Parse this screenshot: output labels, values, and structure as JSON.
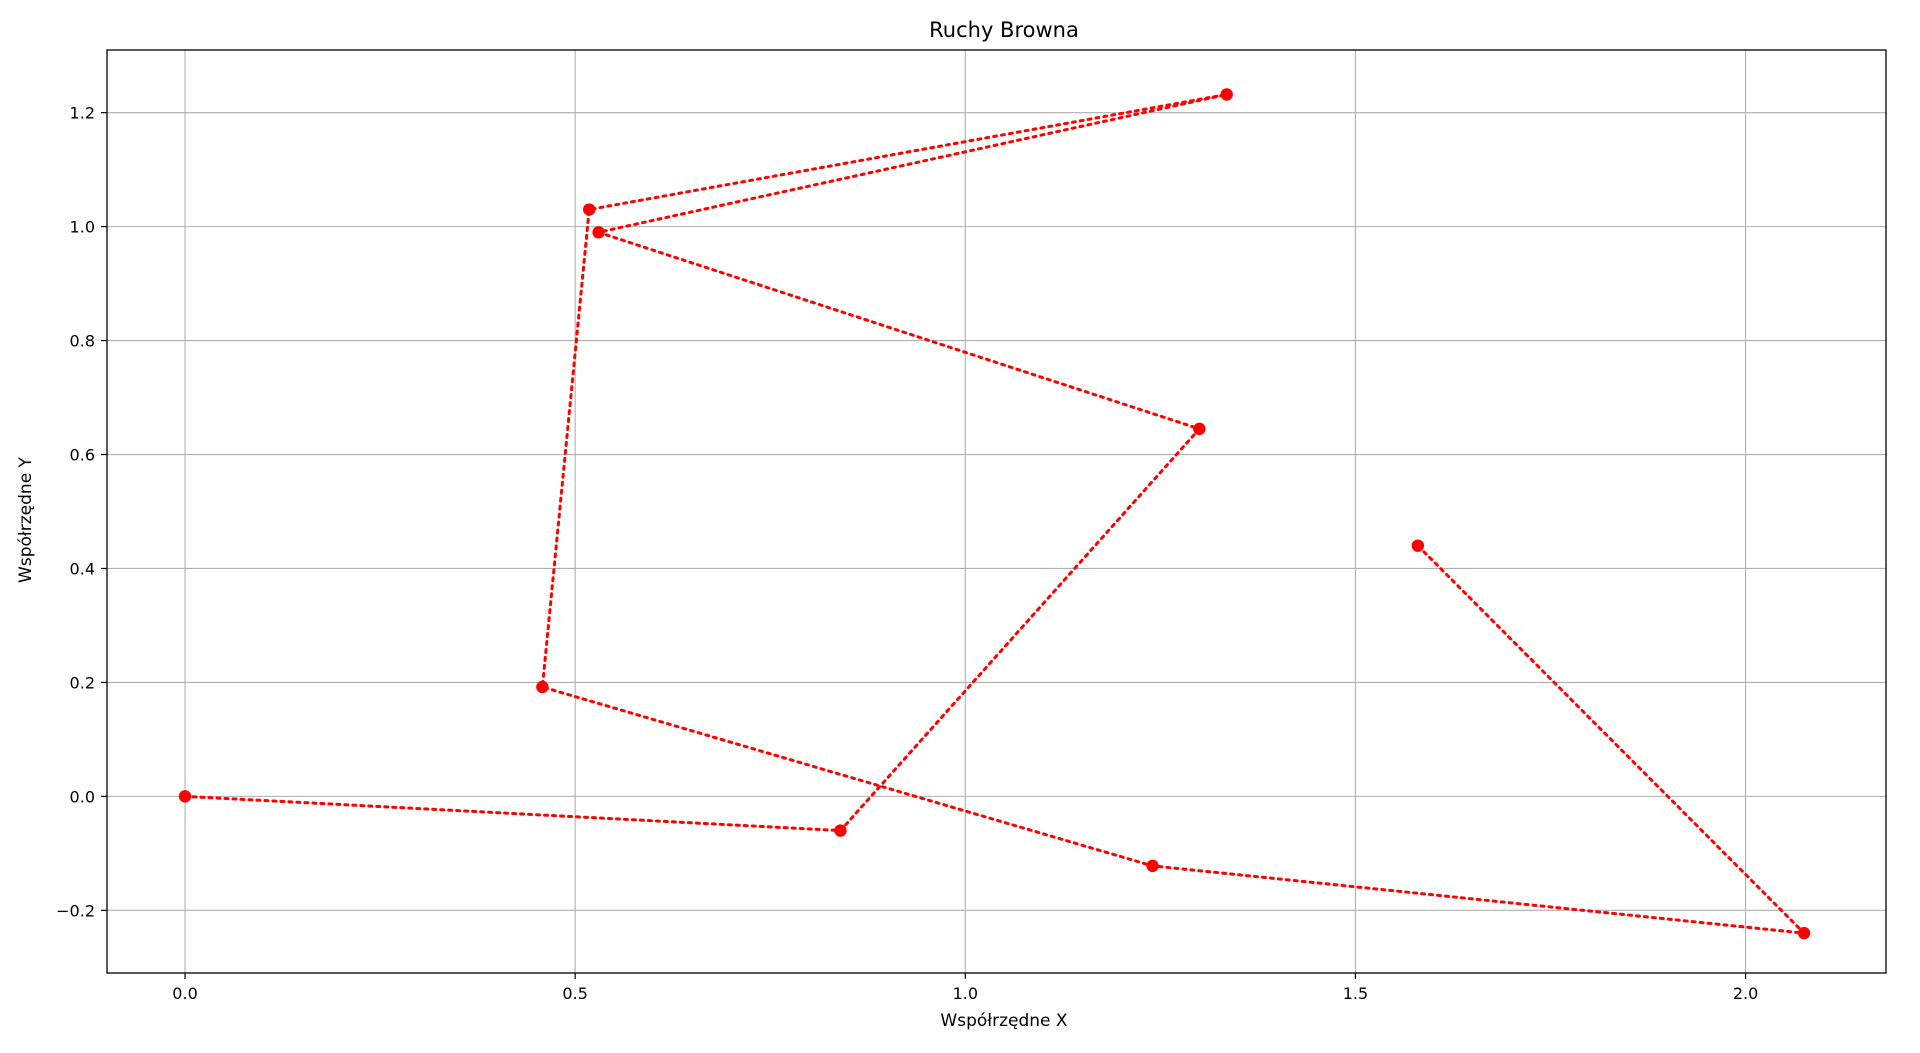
{
  "chart_data": {
    "type": "line",
    "title": "Ruchy Browna",
    "xlabel": "Współrzędne X",
    "ylabel": "Współrzędne Y",
    "xlim": [
      -0.1,
      2.18
    ],
    "ylim": [
      -0.31,
      1.31
    ],
    "xticks": [
      0.0,
      0.5,
      1.0,
      1.5,
      2.0
    ],
    "xtick_labels": [
      "0.0",
      "0.5",
      "1.0",
      "1.5",
      "2.0"
    ],
    "yticks": [
      -0.2,
      0.0,
      0.2,
      0.4,
      0.6,
      0.8,
      1.0,
      1.2
    ],
    "ytick_labels": [
      "−0.2",
      "0.0",
      "0.2",
      "0.4",
      "0.6",
      "0.8",
      "1.0",
      "1.2"
    ],
    "grid": true,
    "legend": "none",
    "series": [
      {
        "color": "#ff0000",
        "line_style": "dotted",
        "marker": "circle",
        "x": [
          0.0,
          0.84,
          1.3,
          0.53,
          1.335,
          0.518,
          0.458,
          1.24,
          2.075,
          1.58
        ],
        "y": [
          0.0,
          -0.06,
          0.645,
          0.99,
          1.232,
          1.03,
          0.192,
          -0.122,
          -0.24,
          0.44
        ]
      }
    ]
  }
}
